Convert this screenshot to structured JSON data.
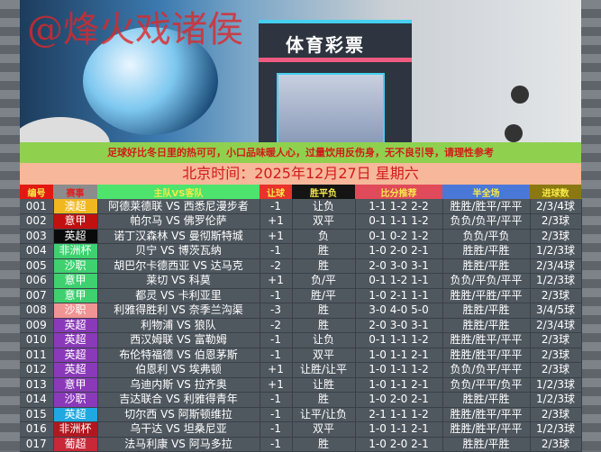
{
  "banner": {
    "watermark": "@烽火戏诸侯",
    "store_sign": "体育彩票"
  },
  "notice": "足球好比冬日里的热可可，小口品味暖人心，过量饮用反伤身，无不良引导，请理性参考",
  "date": "北京时间：2025年12月27日  星期六",
  "headers": [
    {
      "label": "编号",
      "bg": "#e01a12"
    },
    {
      "label": "赛事",
      "bg": "#8c8c8c",
      "color": "#e02020"
    },
    {
      "label": "主队VS客队",
      "bg": "#4de36c"
    },
    {
      "label": "让球",
      "bg": "#e8322a"
    },
    {
      "label": "胜平负",
      "bg": "#141414"
    },
    {
      "label": "比分推荐",
      "bg": "#e04a5a"
    },
    {
      "label": "半全场",
      "bg": "#4a78d8"
    },
    {
      "label": "进球数",
      "bg": "#8a7810"
    }
  ],
  "rows": [
    {
      "no": "001",
      "league": "澳超",
      "color": "#f0b820",
      "match": "阿德莱德联 VS 西悉尼漫步者",
      "hc": "-1",
      "res": "让负",
      "score": "1-1 1-2 2-2",
      "hf": "胜胜/胜平/平平",
      "goals": "2/3/4球"
    },
    {
      "no": "002",
      "league": "意甲",
      "color": "#c01010",
      "match": "帕尔马 VS 佛罗伦萨",
      "hc": "+1",
      "res": "双平",
      "score": "0-1 1-1 1-2",
      "hf": "负负/负平/平平",
      "goals": "2/3球"
    },
    {
      "no": "003",
      "league": "英超",
      "color": "#0a0a0a",
      "match": "诺丁汉森林 VS 曼彻斯特城",
      "hc": "+1",
      "res": "负",
      "score": "0-1 0-2 1-2",
      "hf": "负负/平负",
      "goals": "2/3球"
    },
    {
      "no": "004",
      "league": "非洲杯",
      "color": "#3fd070",
      "match": "贝宁 VS 博茨瓦纳",
      "hc": "-1",
      "res": "胜",
      "score": "1-0 2-0 2-1",
      "hf": "胜胜/平胜",
      "goals": "1/2/3球"
    },
    {
      "no": "005",
      "league": "沙职",
      "color": "#3fd070",
      "match": "胡巴尔卡德西亚 VS 达马克",
      "hc": "-2",
      "res": "胜",
      "score": "2-0 3-0 3-1",
      "hf": "胜胜/平胜",
      "goals": "2/3/4球"
    },
    {
      "no": "006",
      "league": "意甲",
      "color": "#3fd070",
      "match": "莱切 VS 科莫",
      "hc": "+1",
      "res": "负/平",
      "score": "0-1 1-2 1-1",
      "hf": "负负/平负/平平",
      "goals": "1/2/3球"
    },
    {
      "no": "007",
      "league": "意甲",
      "color": "#3fd070",
      "match": "都灵 VS 卡利亚里",
      "hc": "-1",
      "res": "胜/平",
      "score": "1-0 2-1 1-1",
      "hf": "胜胜/平胜/平平",
      "goals": "2/3球"
    },
    {
      "no": "008",
      "league": "沙职",
      "color": "#f09494",
      "match": "利雅得胜利 VS 奈季兰沟渠",
      "hc": "-3",
      "res": "胜",
      "score": "3-0 4-0 5-0",
      "hf": "胜胜/平胜",
      "goals": "3/4/5球"
    },
    {
      "no": "009",
      "league": "英超",
      "color": "#8a3ab8",
      "match": "利物浦 VS 狼队",
      "hc": "-2",
      "res": "胜",
      "score": "2-0 3-0 3-1",
      "hf": "胜胜/平胜",
      "goals": "2/3/4球"
    },
    {
      "no": "010",
      "league": "英超",
      "color": "#8a3ab8",
      "match": "西汉姆联 VS 富勒姆",
      "hc": "-1",
      "res": "让负",
      "score": "0-1 1-1 1-2",
      "hf": "胜胜/胜平/平平",
      "goals": "2/3球"
    },
    {
      "no": "011",
      "league": "英超",
      "color": "#8a3ab8",
      "match": "布伦特福德 VS 伯恩茅斯",
      "hc": "-1",
      "res": "双平",
      "score": "1-0 1-1 2-1",
      "hf": "胜胜/胜平/平平",
      "goals": "2/3球"
    },
    {
      "no": "012",
      "league": "英超",
      "color": "#8a3ab8",
      "match": "伯恩利 VS 埃弗顿",
      "hc": "+1",
      "res": "让胜/让平",
      "score": "1-0 1-1 1-2",
      "hf": "负负/负平/平平",
      "goals": "2/3球"
    },
    {
      "no": "013",
      "league": "意甲",
      "color": "#8a3ab8",
      "match": "乌迪内斯 VS 拉齐奥",
      "hc": "+1",
      "res": "让胜",
      "score": "1-0 1-1 2-1",
      "hf": "负负/平平/负平",
      "goals": "1/2/3球"
    },
    {
      "no": "014",
      "league": "沙职",
      "color": "#8a3ab8",
      "match": "吉达联合 VS 利雅得青年",
      "hc": "-1",
      "res": "胜",
      "score": "1-0 2-0 2-1",
      "hf": "胜胜/平胜",
      "goals": "1/2/3球"
    },
    {
      "no": "015",
      "league": "英超",
      "color": "#20a8e0",
      "match": "切尔西 VS 阿斯顿维拉",
      "hc": "-1",
      "res": "让平/让负",
      "score": "2-1 1-1 1-2",
      "hf": "胜胜/胜平/平平",
      "goals": "2/3球"
    },
    {
      "no": "016",
      "league": "非洲杯",
      "color": "#b01820",
      "match": "乌干达 VS 坦桑尼亚",
      "hc": "-1",
      "res": "双平",
      "score": "1-0 1-1 2-1",
      "hf": "胜胜/胜平/平平",
      "goals": "1/2/3球"
    },
    {
      "no": "017",
      "league": "葡超",
      "color": "#c82838",
      "match": "法马利康 VS 阿马多拉",
      "hc": "-1",
      "res": "胜",
      "score": "1-0 2-0 2-1",
      "hf": "胜胜/平胜",
      "goals": "2/3球"
    }
  ]
}
